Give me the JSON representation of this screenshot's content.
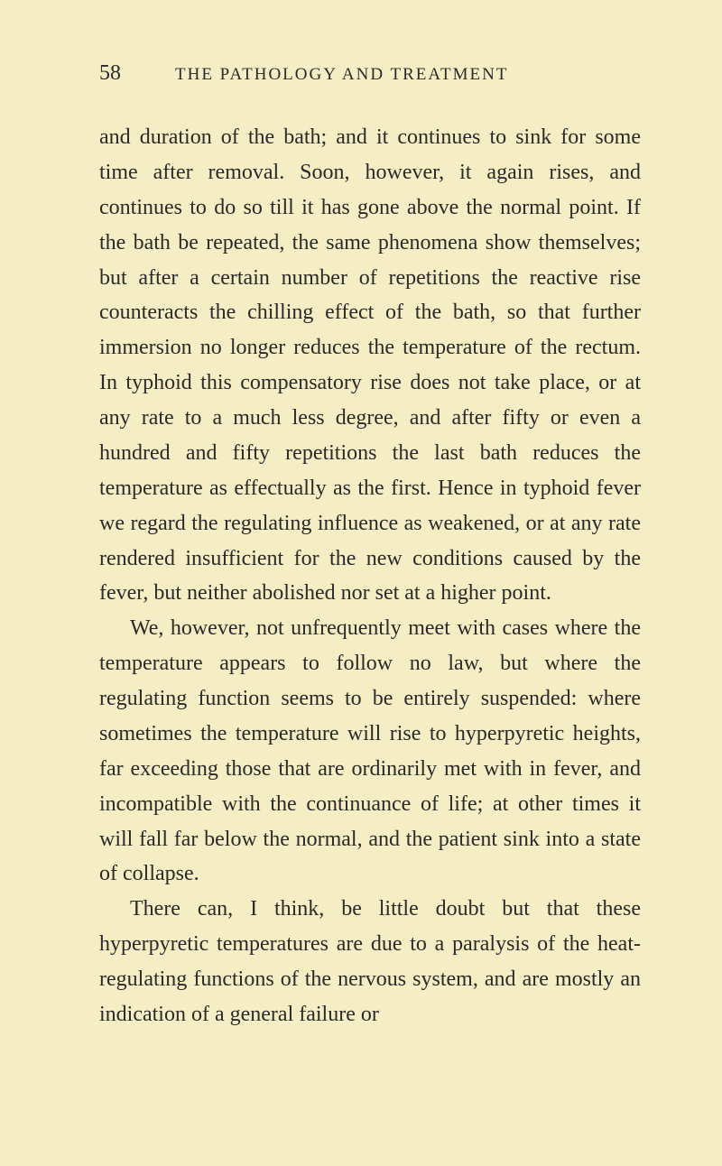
{
  "header": {
    "pageNumber": "58",
    "runningTitle": "THE PATHOLOGY AND TREATMENT"
  },
  "paragraphs": [
    "and duration of the bath; and it continues to sink for some time after removal. Soon, however, it again rises, and continues to do so till it has gone above the normal point. If the bath be repeated, the same phenomena show themselves; but after a certain number of repetitions the reactive rise counteracts the chilling effect of the bath, so that further immersion no longer reduces the temperature of the rectum. In typhoid this compensatory rise does not take place, or at any rate to a much less degree, and after fifty or even a hundred and fifty repetitions the last bath reduces the temperature as effectually as the first. Hence in typhoid fever we regard the regulating influence as weakened, or at any rate rendered insufficient for the new conditions caused by the fever, but neither abolished nor set at a higher point.",
    "We, however, not unfrequently meet with cases where the temperature appears to follow no law, but where the regulating function seems to be entirely suspended: where sometimes the temperature will rise to hyperpyretic heights, far exceeding those that are ordinarily met with in fever, and incompatible with the continuance of life; at other times it will fall far below the normal, and the patient sink into a state of collapse.",
    "There can, I think, be little doubt but that these hyperpyretic temperatures are due to a paralysis of the heat-regulating functions of the nervous system, and are mostly an indication of a general failure or"
  ],
  "styling": {
    "backgroundColor": "#f5eec5",
    "textColor": "#2a2a28",
    "bodyFontSize": 24,
    "lineHeight": 1.62,
    "pageNumberFontSize": 24,
    "runningTitleFontSize": 19
  }
}
